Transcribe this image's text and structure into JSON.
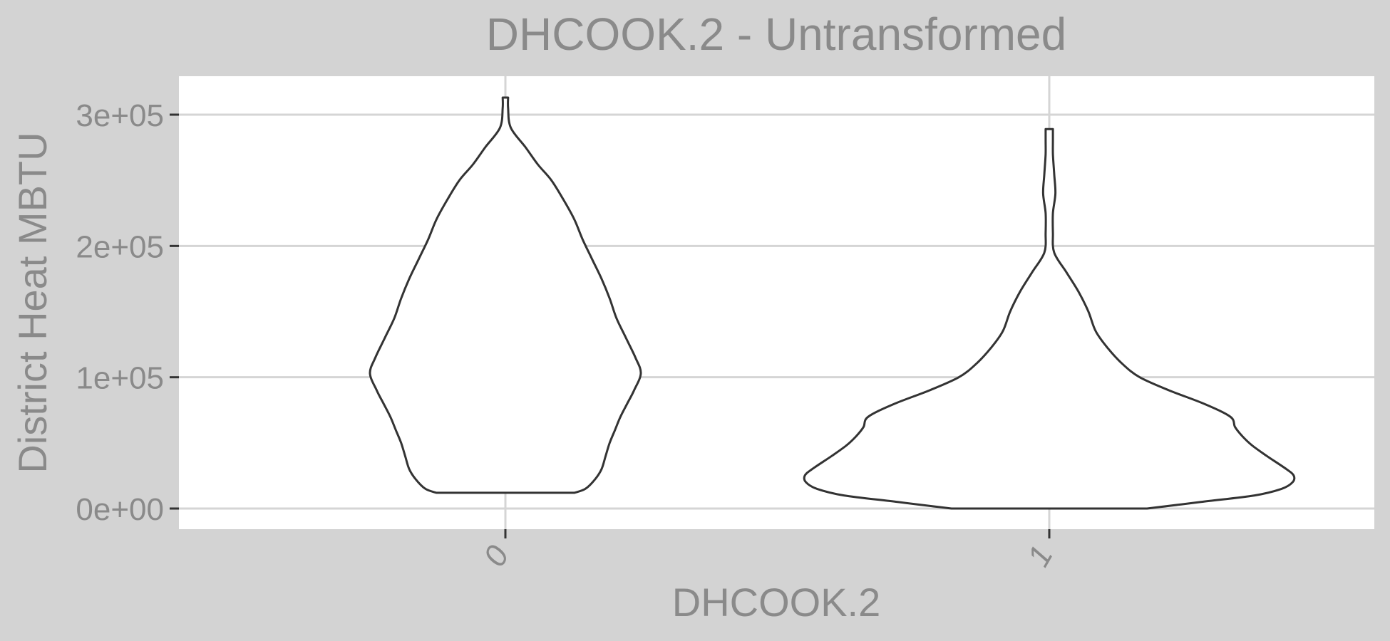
{
  "chart_data": {
    "type": "violin",
    "title": "DHCOOK.2 - Untransformed",
    "xlabel": "DHCOOK.2",
    "ylabel": "District Heat MBTU",
    "categories": [
      "0",
      "1"
    ],
    "yticks": [
      0,
      100000,
      200000,
      300000
    ],
    "ytick_labels": [
      "0e+00",
      "1e+05",
      "2e+05",
      "3e+05"
    ],
    "ylim": [
      -15000,
      330000
    ],
    "grid": true,
    "background_color": "#d3d3d3",
    "panel_color": "#ffffff",
    "outline_color": "#333333",
    "violins": [
      {
        "category": "0",
        "density": [
          [
            12000,
            0.49
          ],
          [
            15000,
            0.41
          ],
          [
            22000,
            0.34
          ],
          [
            30000,
            0.29
          ],
          [
            40000,
            0.26
          ],
          [
            50000,
            0.23
          ],
          [
            60000,
            0.19
          ],
          [
            70000,
            0.15
          ],
          [
            80000,
            0.1
          ],
          [
            90000,
            0.05
          ],
          [
            103000,
            0.0
          ],
          [
            115000,
            0.04
          ],
          [
            130000,
            0.11
          ],
          [
            145000,
            0.18
          ],
          [
            160000,
            0.23
          ],
          [
            175000,
            0.29
          ],
          [
            190000,
            0.36
          ],
          [
            205000,
            0.43
          ],
          [
            220000,
            0.49
          ],
          [
            235000,
            0.57
          ],
          [
            250000,
            0.66
          ],
          [
            262000,
            0.76
          ],
          [
            275000,
            0.85
          ],
          [
            290000,
            0.96
          ],
          [
            305000,
            0.98
          ],
          [
            313000,
            0.98
          ]
        ]
      },
      {
        "category": "1",
        "density": [
          [
            0,
            0.6
          ],
          [
            5000,
            0.38
          ],
          [
            10000,
            0.16
          ],
          [
            15000,
            0.05
          ],
          [
            20000,
            0.005
          ],
          [
            25000,
            0.0
          ],
          [
            30000,
            0.03
          ],
          [
            40000,
            0.11
          ],
          [
            48000,
            0.17
          ],
          [
            55000,
            0.21
          ],
          [
            62000,
            0.24
          ],
          [
            70000,
            0.26
          ],
          [
            80000,
            0.37
          ],
          [
            90000,
            0.51
          ],
          [
            100000,
            0.63
          ],
          [
            110000,
            0.7
          ],
          [
            122000,
            0.76
          ],
          [
            135000,
            0.81
          ],
          [
            150000,
            0.84
          ],
          [
            165000,
            0.88
          ],
          [
            180000,
            0.93
          ],
          [
            195000,
            0.98
          ],
          [
            210000,
            0.985
          ],
          [
            225000,
            0.985
          ],
          [
            240000,
            0.975
          ],
          [
            255000,
            0.98
          ],
          [
            270000,
            0.985
          ],
          [
            280000,
            0.985
          ],
          [
            289000,
            0.985
          ]
        ]
      }
    ]
  }
}
